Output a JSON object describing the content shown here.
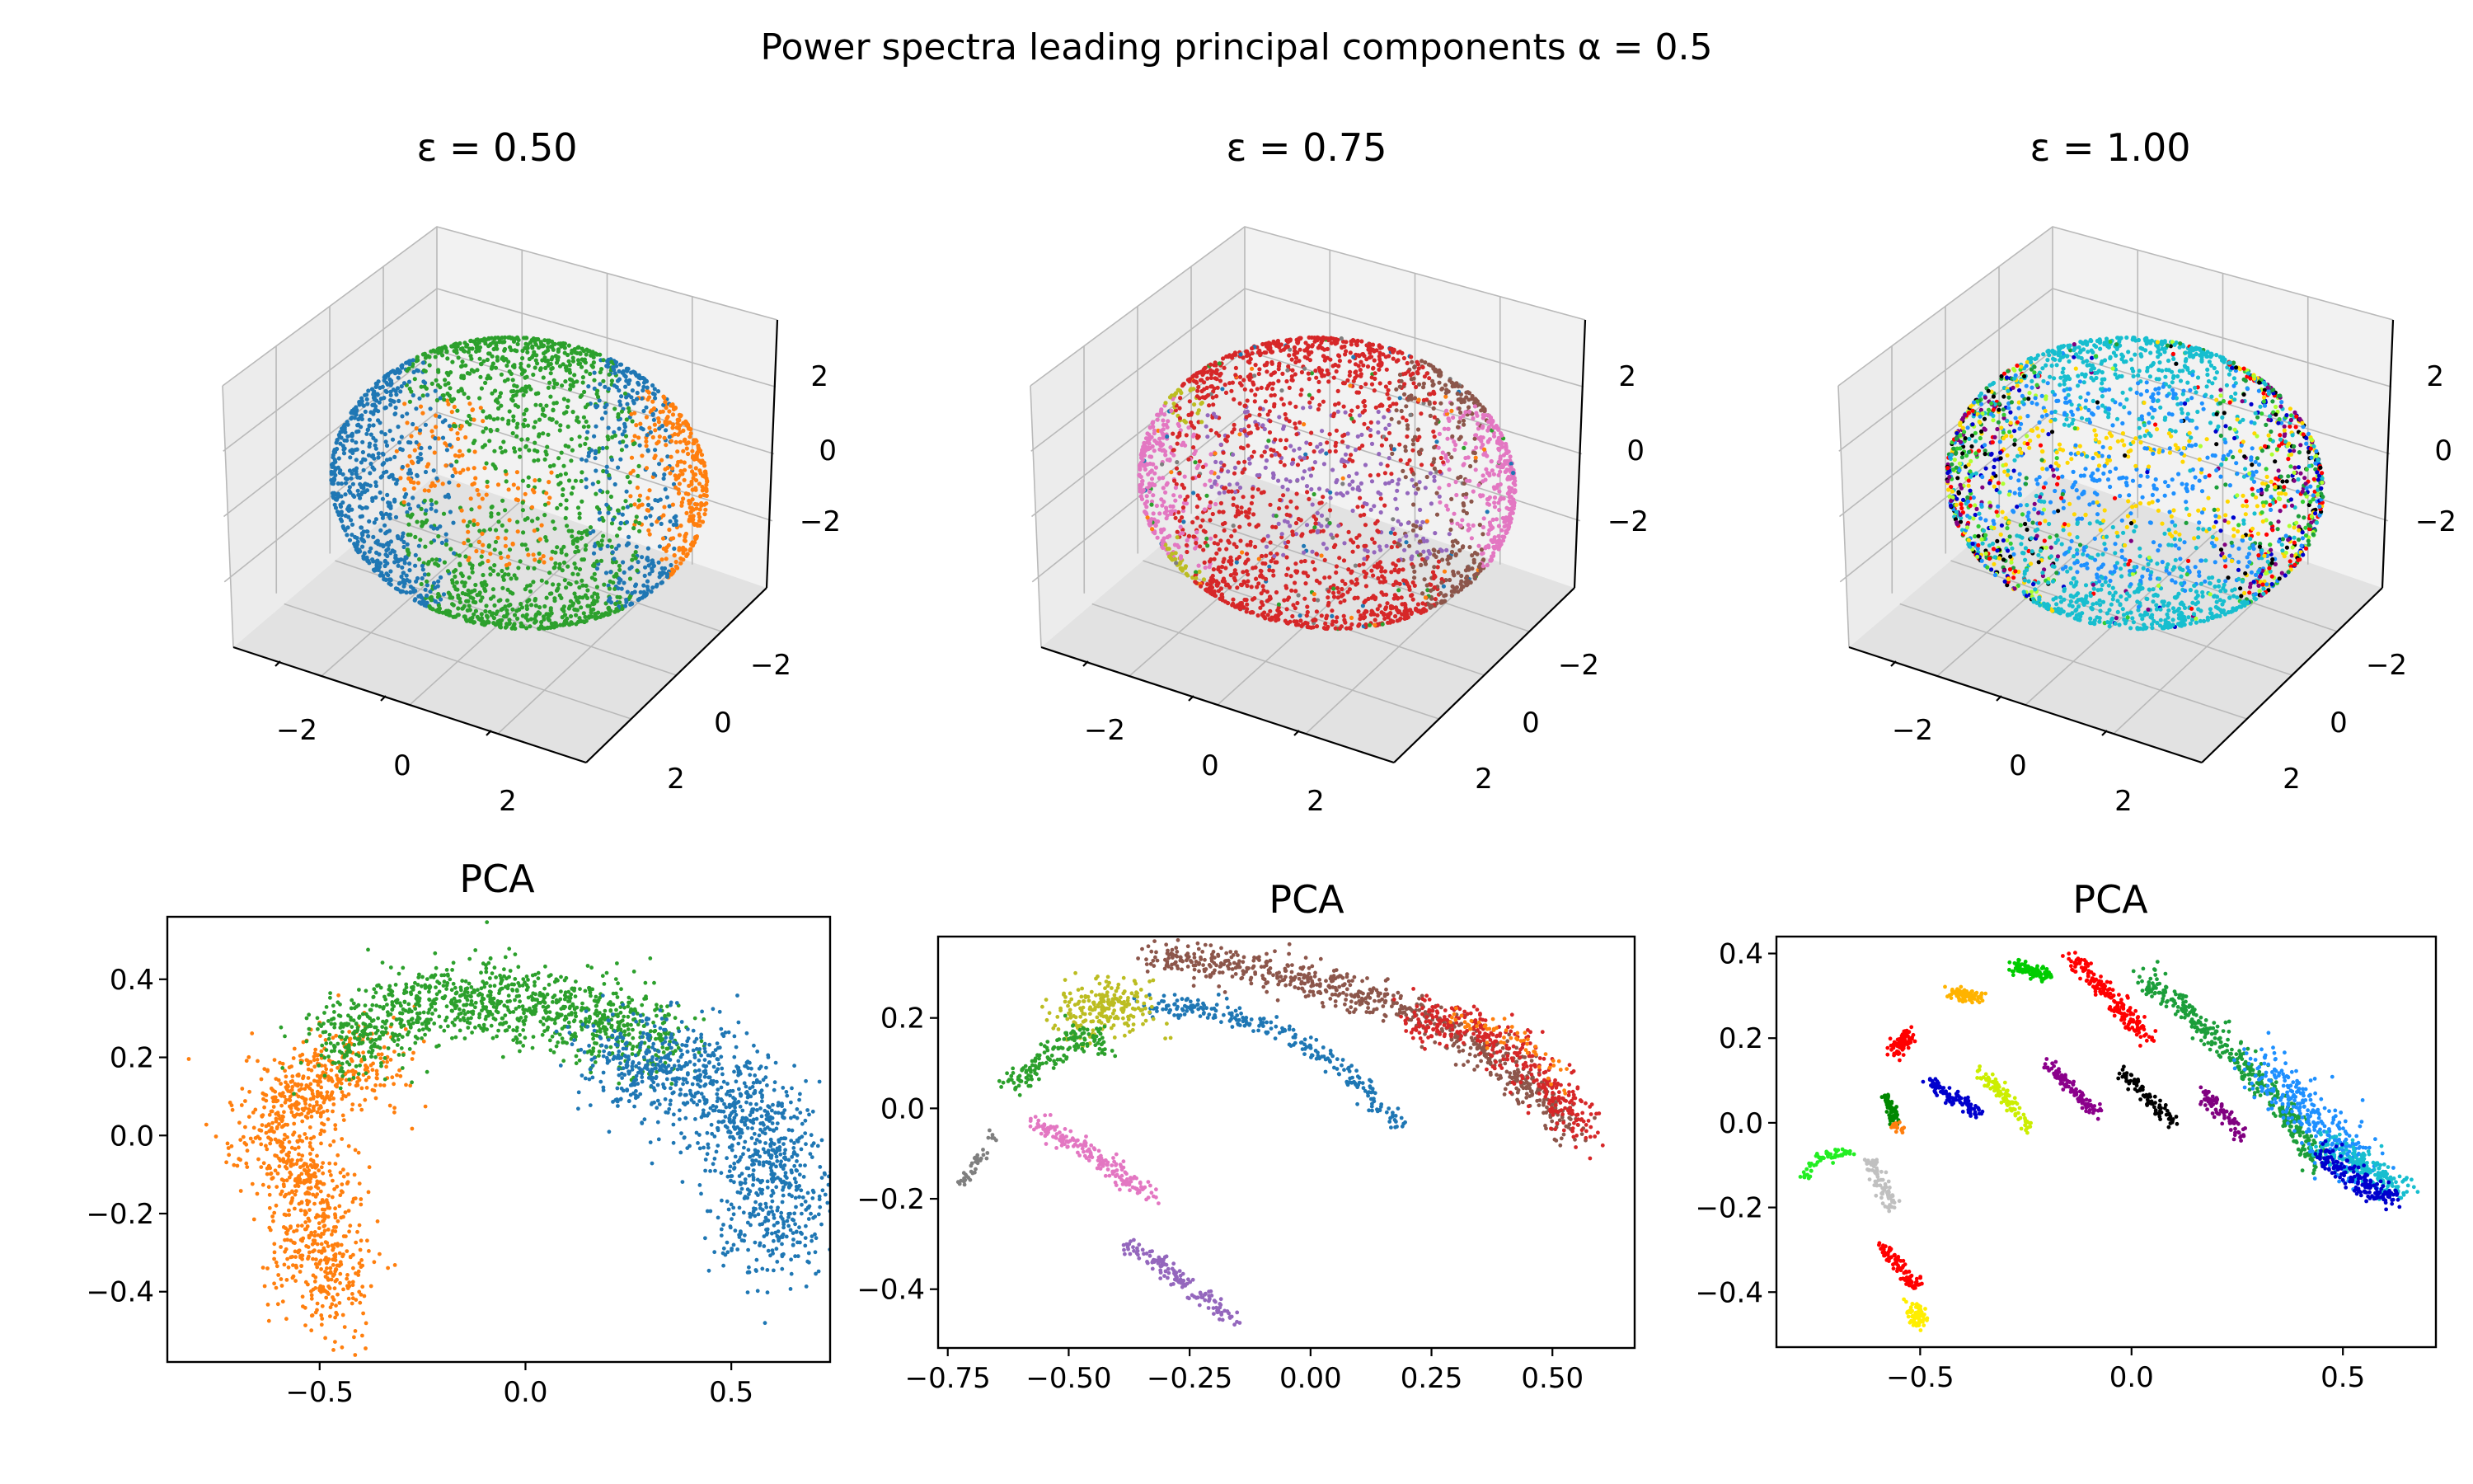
{
  "figure": {
    "suptitle": "Power spectra leading principal components α = 0.5"
  },
  "chart_data": [
    {
      "type": "scatter3d",
      "title": "ε =  0.50",
      "axes_ticks": {
        "x": [
          "−2",
          "0",
          "2"
        ],
        "y": [
          "−2",
          "0",
          "2"
        ],
        "z": [
          "−2",
          "0",
          "2"
        ]
      },
      "xlim": [
        -3,
        3
      ],
      "ylim": [
        -3,
        3
      ],
      "zlim": [
        -3,
        3
      ],
      "clusters": [
        {
          "name": "blue",
          "color": "#1f77b4",
          "region": "bands and right ring"
        },
        {
          "name": "orange",
          "color": "#ff7f0e",
          "region": "left saddle and right ring"
        },
        {
          "name": "green",
          "color": "#2ca02c",
          "region": "sphere surface"
        }
      ]
    },
    {
      "type": "scatter3d",
      "title": "ε =  0.75",
      "axes_ticks": {
        "x": [
          "−2",
          "0",
          "2"
        ],
        "y": [
          "−2",
          "0",
          "2"
        ],
        "z": [
          "−2",
          "0",
          "2"
        ]
      },
      "xlim": [
        -3,
        3
      ],
      "ylim": [
        -3,
        3
      ],
      "zlim": [
        -3,
        3
      ],
      "clusters": [
        {
          "name": "red",
          "color": "#d62728"
        },
        {
          "name": "brown",
          "color": "#8c564b"
        },
        {
          "name": "pink",
          "color": "#e377c2"
        },
        {
          "name": "purple",
          "color": "#9467bd"
        },
        {
          "name": "olive",
          "color": "#bcbd22"
        },
        {
          "name": "orange",
          "color": "#ff7f0e"
        },
        {
          "name": "green",
          "color": "#2ca02c"
        },
        {
          "name": "blue",
          "color": "#1f77b4"
        },
        {
          "name": "gray",
          "color": "#7f7f7f"
        }
      ]
    },
    {
      "type": "scatter3d",
      "title": "ε =  1.00",
      "axes_ticks": {
        "x": [
          "−2",
          "0",
          "2"
        ],
        "y": [
          "−2",
          "0",
          "2"
        ],
        "z": [
          "−2",
          "0",
          "2"
        ]
      },
      "xlim": [
        -3,
        3
      ],
      "ylim": [
        -3,
        3
      ],
      "zlim": [
        -3,
        3
      ],
      "clusters": [
        {
          "name": "c1",
          "color": "#17becf"
        },
        {
          "name": "c2",
          "color": "#0000cd"
        },
        {
          "name": "c3",
          "color": "#1c9e3a"
        },
        {
          "name": "c4",
          "color": "#ff0000"
        },
        {
          "name": "c5",
          "color": "#000000"
        },
        {
          "name": "c6",
          "color": "#32cd32"
        },
        {
          "name": "c7",
          "color": "#ffd700"
        },
        {
          "name": "c8",
          "color": "#1e90ff"
        },
        {
          "name": "c9",
          "color": "#800080"
        },
        {
          "name": "c10",
          "color": "#adff2f"
        }
      ]
    },
    {
      "type": "scatter",
      "title": "PCA",
      "xlim": [
        -0.87,
        0.74
      ],
      "ylim": [
        -0.58,
        0.56
      ],
      "xticks": [
        -0.5,
        0.0,
        0.5
      ],
      "xtick_labels": [
        "−0.5",
        "0.0",
        "0.5"
      ],
      "yticks": [
        -0.4,
        -0.2,
        0.0,
        0.2,
        0.4
      ],
      "ytick_labels": [
        "−0.4",
        "−0.2",
        "0.0",
        "0.2",
        "0.4"
      ],
      "clusters": [
        {
          "name": "orange",
          "color": "#ff7f0e",
          "n": 1000,
          "path": [
            [
              -0.35,
              0.2
            ],
            [
              -0.5,
              0.15
            ],
            [
              -0.6,
              0.05
            ],
            [
              -0.55,
              -0.1
            ],
            [
              -0.5,
              -0.28
            ],
            [
              -0.47,
              -0.45
            ]
          ],
          "spread": 0.06
        },
        {
          "name": "green",
          "color": "#2ca02c",
          "n": 1100,
          "path": [
            [
              -0.5,
              0.2
            ],
            [
              -0.35,
              0.3
            ],
            [
              -0.2,
              0.35
            ],
            [
              -0.05,
              0.35
            ],
            [
              0.1,
              0.32
            ],
            [
              0.25,
              0.28
            ],
            [
              0.35,
              0.22
            ]
          ],
          "spread": 0.05
        },
        {
          "name": "blue",
          "color": "#1f77b4",
          "n": 1100,
          "path": [
            [
              0.2,
              0.2
            ],
            [
              0.35,
              0.18
            ],
            [
              0.5,
              0.1
            ],
            [
              0.6,
              -0.05
            ],
            [
              0.62,
              -0.2
            ],
            [
              0.55,
              -0.3
            ]
          ],
          "spread": 0.07
        }
      ]
    },
    {
      "type": "scatter",
      "title": "PCA",
      "xlim": [
        -0.77,
        0.67
      ],
      "ylim": [
        -0.53,
        0.38
      ],
      "xticks": [
        -0.75,
        -0.5,
        -0.25,
        0.0,
        0.25,
        0.5
      ],
      "xtick_labels": [
        "−0.75",
        "−0.50",
        "−0.25",
        "0.00",
        "0.25",
        "0.50"
      ],
      "yticks": [
        -0.4,
        -0.2,
        0.0,
        0.2
      ],
      "ytick_labels": [
        "−0.4",
        "−0.2",
        "0.0",
        "0.2"
      ],
      "clusters": [
        {
          "name": "brown",
          "color": "#8c564b",
          "n": 700,
          "path": [
            [
              -0.33,
              0.33
            ],
            [
              -0.15,
              0.32
            ],
            [
              0.05,
              0.27
            ],
            [
              0.25,
              0.2
            ],
            [
              0.4,
              0.1
            ],
            [
              0.55,
              -0.05
            ]
          ],
          "spread": 0.02
        },
        {
          "name": "red",
          "color": "#d62728",
          "n": 350,
          "path": [
            [
              0.2,
              0.2
            ],
            [
              0.35,
              0.18
            ],
            [
              0.45,
              0.1
            ],
            [
              0.57,
              -0.05
            ]
          ],
          "spread": 0.025
        },
        {
          "name": "orange",
          "color": "#ff7f0e",
          "n": 60,
          "path": [
            [
              0.3,
              0.2
            ],
            [
              0.45,
              0.15
            ],
            [
              0.52,
              0.05
            ]
          ],
          "spread": 0.012
        },
        {
          "name": "blue",
          "color": "#1f77b4",
          "n": 250,
          "path": [
            [
              -0.35,
              0.23
            ],
            [
              -0.2,
              0.22
            ],
            [
              -0.05,
              0.17
            ],
            [
              0.05,
              0.1
            ],
            [
              0.2,
              -0.05
            ]
          ],
          "spread": 0.012
        },
        {
          "name": "olive",
          "color": "#bcbd22",
          "n": 220,
          "path": [
            [
              -0.5,
              0.2
            ],
            [
              -0.45,
              0.22
            ],
            [
              -0.4,
              0.24
            ],
            [
              -0.35,
              0.21
            ]
          ],
          "spread": 0.03
        },
        {
          "name": "green",
          "color": "#2ca02c",
          "n": 160,
          "path": [
            [
              -0.62,
              0.05
            ],
            [
              -0.55,
              0.11
            ],
            [
              -0.48,
              0.16
            ],
            [
              -0.42,
              0.14
            ]
          ],
          "spread": 0.015
        },
        {
          "name": "pink",
          "color": "#e377c2",
          "n": 180,
          "path": [
            [
              -0.57,
              -0.03
            ],
            [
              -0.48,
              -0.08
            ],
            [
              -0.4,
              -0.14
            ],
            [
              -0.33,
              -0.19
            ]
          ],
          "spread": 0.012
        },
        {
          "name": "purple",
          "color": "#9467bd",
          "n": 140,
          "path": [
            [
              -0.38,
              -0.3
            ],
            [
              -0.3,
              -0.35
            ],
            [
              -0.22,
              -0.42
            ],
            [
              -0.16,
              -0.47
            ]
          ],
          "spread": 0.01
        },
        {
          "name": "gray",
          "color": "#7f7f7f",
          "n": 40,
          "path": [
            [
              -0.72,
              -0.17
            ],
            [
              -0.69,
              -0.12
            ],
            [
              -0.66,
              -0.06
            ]
          ],
          "spread": 0.006
        }
      ]
    },
    {
      "type": "scatter",
      "title": "PCA",
      "xlim": [
        -0.84,
        0.72
      ],
      "ylim": [
        -0.53,
        0.44
      ],
      "xticks": [
        -0.5,
        0.0,
        0.5
      ],
      "xtick_labels": [
        "−0.5",
        "0.0",
        "0.5"
      ],
      "yticks": [
        -0.4,
        -0.2,
        0.0,
        0.2,
        0.4
      ],
      "ytick_labels": [
        "−0.4",
        "−0.2",
        "0.0",
        "0.2",
        "0.4"
      ],
      "clusters": [
        {
          "name": "green",
          "color": "#1c9e3a",
          "n": 400,
          "path": [
            [
              0.03,
              0.35
            ],
            [
              0.2,
              0.2
            ],
            [
              0.35,
              0.05
            ],
            [
              0.45,
              -0.1
            ]
          ],
          "spread": 0.015
        },
        {
          "name": "blue-light",
          "color": "#1e90ff",
          "n": 300,
          "path": [
            [
              0.3,
              0.15
            ],
            [
              0.45,
              0.0
            ],
            [
              0.55,
              -0.12
            ]
          ],
          "spread": 0.03
        },
        {
          "name": "cyan",
          "color": "#17becf",
          "n": 200,
          "path": [
            [
              0.45,
              -0.05
            ],
            [
              0.58,
              -0.12
            ],
            [
              0.65,
              -0.17
            ]
          ],
          "spread": 0.02
        },
        {
          "name": "navy",
          "color": "#0000cd",
          "n": 180,
          "path": [
            [
              0.45,
              -0.07
            ],
            [
              0.55,
              -0.15
            ],
            [
              0.62,
              -0.18
            ]
          ],
          "spread": 0.015
        },
        {
          "name": "red-top",
          "color": "#ff0000",
          "n": 180,
          "path": [
            [
              -0.14,
              0.39
            ],
            [
              -0.07,
              0.32
            ],
            [
              0.0,
              0.24
            ],
            [
              0.04,
              0.2
            ]
          ],
          "spread": 0.012
        },
        {
          "name": "lime",
          "color": "#00cc00",
          "n": 100,
          "path": [
            [
              -0.28,
              0.37
            ],
            [
              -0.24,
              0.36
            ],
            [
              -0.2,
              0.35
            ]
          ],
          "spread": 0.008
        },
        {
          "name": "amber",
          "color": "#ffb300",
          "n": 100,
          "path": [
            [
              -0.43,
              0.31
            ],
            [
              -0.39,
              0.3
            ],
            [
              -0.35,
              0.3
            ]
          ],
          "spread": 0.008
        },
        {
          "name": "red-2",
          "color": "#ff0000",
          "n": 90,
          "path": [
            [
              -0.56,
              0.17
            ],
            [
              -0.53,
              0.21
            ]
          ],
          "spread": 0.01
        },
        {
          "name": "darkblue",
          "color": "#0000cd",
          "n": 100,
          "path": [
            [
              -0.48,
              0.1
            ],
            [
              -0.42,
              0.06
            ],
            [
              -0.36,
              0.02
            ]
          ],
          "spread": 0.008
        },
        {
          "name": "yellowgreen",
          "color": "#ccee00",
          "n": 100,
          "path": [
            [
              -0.36,
              0.12
            ],
            [
              -0.3,
              0.06
            ],
            [
              -0.24,
              -0.02
            ]
          ],
          "spread": 0.008
        },
        {
          "name": "purple-a",
          "color": "#8b008b",
          "n": 100,
          "path": [
            [
              -0.2,
              0.14
            ],
            [
              -0.14,
              0.08
            ],
            [
              -0.08,
              0.02
            ]
          ],
          "spread": 0.008
        },
        {
          "name": "black",
          "color": "#000000",
          "n": 90,
          "path": [
            [
              -0.02,
              0.12
            ],
            [
              0.04,
              0.06
            ],
            [
              0.1,
              0.0
            ]
          ],
          "spread": 0.008
        },
        {
          "name": "purple-b",
          "color": "#800080",
          "n": 80,
          "path": [
            [
              0.17,
              0.07
            ],
            [
              0.22,
              0.02
            ],
            [
              0.26,
              -0.03
            ]
          ],
          "spread": 0.009
        },
        {
          "name": "green-small",
          "color": "#008800",
          "n": 60,
          "path": [
            [
              -0.58,
              0.06
            ],
            [
              -0.56,
              0.0
            ]
          ],
          "spread": 0.007
        },
        {
          "name": "orange-small",
          "color": "#ff7f0e",
          "n": 20,
          "path": [
            [
              -0.57,
              0.0
            ],
            [
              -0.54,
              -0.02
            ]
          ],
          "spread": 0.005
        },
        {
          "name": "bright-green",
          "color": "#22ee22",
          "n": 60,
          "path": [
            [
              -0.78,
              -0.14
            ],
            [
              -0.74,
              -0.08
            ],
            [
              -0.66,
              -0.07
            ]
          ],
          "spread": 0.006
        },
        {
          "name": "silver",
          "color": "#c0c0c0",
          "n": 80,
          "path": [
            [
              -0.62,
              -0.09
            ],
            [
              -0.59,
              -0.15
            ],
            [
              -0.56,
              -0.2
            ]
          ],
          "spread": 0.009
        },
        {
          "name": "red-3",
          "color": "#ff0000",
          "n": 90,
          "path": [
            [
              -0.59,
              -0.29
            ],
            [
              -0.55,
              -0.34
            ],
            [
              -0.51,
              -0.39
            ]
          ],
          "spread": 0.008
        },
        {
          "name": "yellow",
          "color": "#ffee00",
          "n": 70,
          "path": [
            [
              -0.52,
              -0.43
            ],
            [
              -0.5,
              -0.47
            ]
          ],
          "spread": 0.01
        }
      ]
    }
  ]
}
